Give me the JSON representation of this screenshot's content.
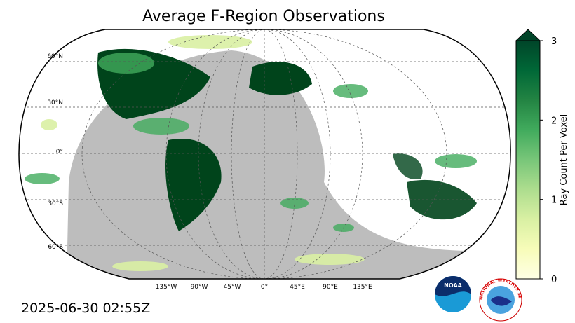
{
  "title": "Average F-Region Observations",
  "timestamp": "2025-06-30 02:55Z",
  "latitude_labels": [
    "60°N",
    "30°N",
    "0°",
    "30°S",
    "60°S"
  ],
  "longitude_labels": [
    "135°W",
    "90°W",
    "45°W",
    "0°",
    "45°E",
    "90°E",
    "135°E"
  ],
  "colorbar": {
    "label": "Ray Count Per Voxel",
    "lim": [
      0,
      3
    ],
    "ticks": [
      0,
      1,
      2,
      3
    ],
    "colors": [
      "#ffffe5",
      "#f7fcb9",
      "#d9f0a3",
      "#addd8e",
      "#78c679",
      "#41ab5d",
      "#238443",
      "#006837",
      "#004529"
    ],
    "extend": "max"
  },
  "logos": {
    "noaa": "NOAA",
    "nws": "NATIONAL WEATHER SERVICE"
  }
}
